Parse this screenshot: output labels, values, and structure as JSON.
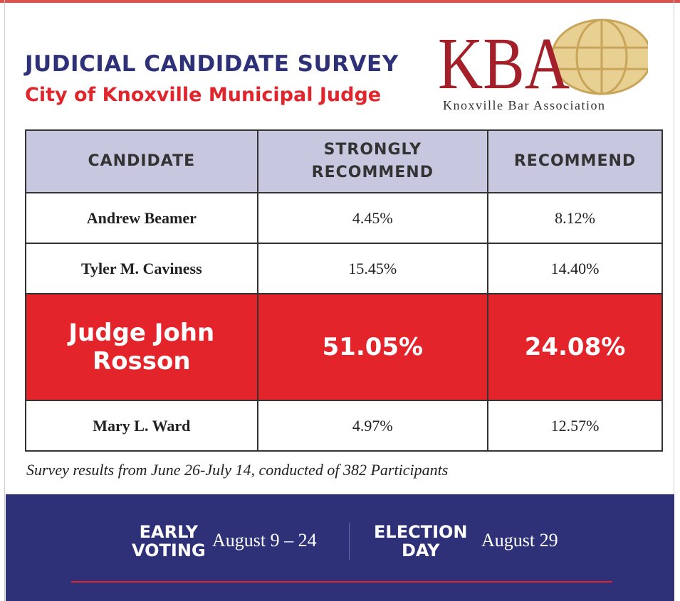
{
  "header": {
    "title": "JUDICIAL CANDIDATE SURVEY",
    "subtitle": "City of Knoxville Municipal Judge"
  },
  "logo": {
    "mark": "KBA",
    "name": "Knoxville Bar Association"
  },
  "table": {
    "columns": [
      "CANDIDATE",
      "STRONGLY RECOMMEND",
      "RECOMMEND"
    ],
    "rows": [
      [
        "Andrew Beamer",
        "4.45%",
        "8.12%"
      ],
      [
        "Tyler M. Caviness",
        "15.45%",
        "14.40%"
      ],
      [
        "Judge John Rosson",
        "51.05%",
        "24.08%"
      ],
      [
        "Mary L. Ward",
        "4.97%",
        "12.57%"
      ]
    ]
  },
  "footnote": "Survey results from June 26-July 14, conducted of 382 Participants",
  "footer": {
    "items": [
      {
        "label": [
          "EARLY",
          "VOTING"
        ],
        "date": "August 9 – 24"
      },
      {
        "label": [
          "ELECTION",
          "DAY"
        ],
        "date": "August 29"
      }
    ]
  }
}
